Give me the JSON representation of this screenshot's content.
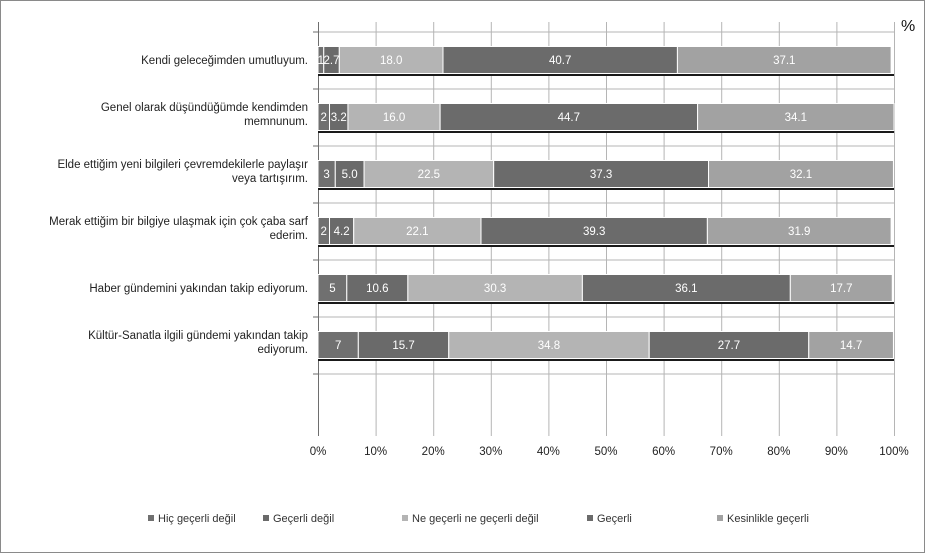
{
  "chart_data": {
    "type": "bar",
    "orientation": "horizontal",
    "stacked": true,
    "percent_stacked": true,
    "unit": "%",
    "categories": [
      [
        "Kendi geleceğimden umutluyum."
      ],
      [
        "Genel olarak düşündüğümde kendimden",
        "memnunum."
      ],
      [
        "Elde ettiğim yeni bilgileri çevremdekilerle paylaşır",
        "veya tartışırım."
      ],
      [
        "Merak ettiğim bir bilgiye ulaşmak için çok çaba sarf",
        "ederim."
      ],
      [
        "Haber gündemini yakından takip ediyorum."
      ],
      [
        "Kültür-Sanatla ilgili gündemi yakından takip",
        "ediyorum."
      ]
    ],
    "series": [
      {
        "name": "Hiç geçerli değil",
        "color": "#707070",
        "label_color": "#ffffff",
        "values": [
          1,
          2,
          3,
          2,
          5,
          7
        ],
        "labels": [
          "1",
          "2",
          "3",
          "2",
          "5",
          "7"
        ]
      },
      {
        "name": "Geçerli değil",
        "color": "#6a6a6a",
        "label_color": "#ffffff",
        "values": [
          2.7,
          3.2,
          5.0,
          4.2,
          10.6,
          15.7
        ],
        "labels": [
          "2.7",
          "3.2",
          "5.0",
          "4.2",
          "10.6",
          "15.7"
        ]
      },
      {
        "name": "Ne geçerli ne geçerli değil",
        "color": "#b4b4b4",
        "label_color": "#ffffff",
        "values": [
          18.0,
          16.0,
          22.5,
          22.1,
          30.3,
          34.8
        ],
        "labels": [
          "18.0",
          "16.0",
          "22.5",
          "22.1",
          "30.3",
          "34.8"
        ]
      },
      {
        "name": "Geçerli",
        "color": "#6b6b6b",
        "label_color": "#ffffff",
        "values": [
          40.7,
          44.7,
          37.3,
          39.3,
          36.1,
          27.7
        ],
        "labels": [
          "40.7",
          "44.7",
          "37.3",
          "39.3",
          "36.1",
          "27.7"
        ]
      },
      {
        "name": "Kesinlikle geçerli",
        "color": "#a2a2a2",
        "label_color": "#ffffff",
        "values": [
          37.1,
          34.1,
          32.1,
          31.9,
          17.7,
          14.7
        ],
        "labels": [
          "37.1",
          "34.1",
          "32.1",
          "31.9",
          "17.7",
          "14.7"
        ]
      }
    ],
    "xlim": [
      0,
      100
    ],
    "x_ticks": [
      0,
      10,
      20,
      30,
      40,
      50,
      60,
      70,
      80,
      90,
      100
    ],
    "x_tick_labels": [
      "0%",
      "10%",
      "20%",
      "30%",
      "40%",
      "50%",
      "60%",
      "70%",
      "80%",
      "90%",
      "100%"
    ],
    "grid": true,
    "legend_position": "bottom"
  }
}
